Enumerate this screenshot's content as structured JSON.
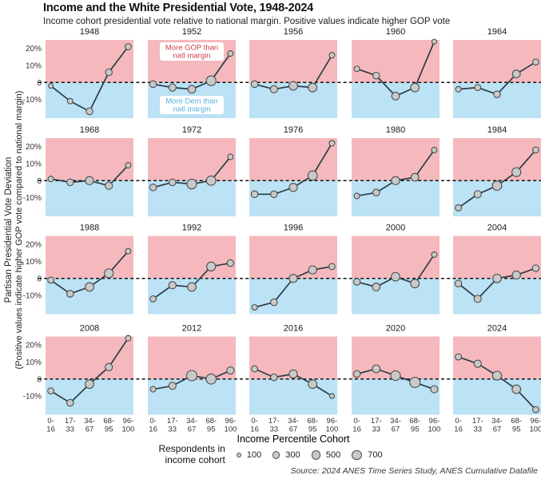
{
  "header": {
    "title": "Income and the White Presidential Vote, 1948-2024",
    "subtitle": "Income cohort presidential vote relative to national margin. Positive values indicate higher GOP vote"
  },
  "y_axis": {
    "label_line1": "Partisan Presidential Vote Deviation",
    "label_line2": "(Positive values indicate higher GOP vote compared to national margin)",
    "tick_labels": [
      "20%",
      "10%",
      "0",
      "-10%"
    ],
    "tick_values": [
      20,
      10,
      0,
      -10
    ]
  },
  "x_axis": {
    "title": "Income Percentile Cohort",
    "tick_lines": [
      [
        "0-",
        "16"
      ],
      [
        "17-",
        "33"
      ],
      [
        "34-",
        "67"
      ],
      [
        "68-",
        "95"
      ],
      [
        "96-",
        "100"
      ]
    ]
  },
  "legend": {
    "label_line1": "Respondents in",
    "label_line2": "income cohort",
    "sizes": [
      100,
      300,
      500,
      700
    ]
  },
  "source": "Source: 2024 ANES Time Series Study, ANES Cumulative Datafile",
  "annotations": [
    {
      "panel": "1952",
      "position": "top",
      "lines": [
        "More GOP than",
        "natl margin"
      ],
      "color": "#cf3d47"
    },
    {
      "panel": "1952",
      "position": "bottom",
      "lines": [
        "More Dem than",
        "natl margin"
      ],
      "color": "#55afe0"
    }
  ],
  "colors": {
    "gop_bg": "#f5b9bd",
    "dem_bg": "#bbe2f5",
    "line": "#2d3c46",
    "point_fill": "#c9c9c9",
    "point_stroke": "#4d4d4d",
    "zero_line": "#111111"
  },
  "chart_data": {
    "type": "line",
    "layout": "small-multiples 4 rows x 5 cols",
    "x_categories": [
      "0-16",
      "17-33",
      "34-67",
      "68-95",
      "96-100"
    ],
    "xlabel": "Income Percentile Cohort",
    "ylabel": "Partisan Presidential Vote Deviation (positive = higher GOP vote vs national margin)",
    "ylim": [
      -21,
      25
    ],
    "yticks": [
      20,
      10,
      0,
      -10
    ],
    "grid": false,
    "point_size_encoding": "respondents in income cohort",
    "panels": [
      {
        "year": "1948",
        "values": [
          -2,
          -11,
          -17,
          6,
          21
        ],
        "respondents": [
          100,
          150,
          250,
          250,
          200
        ]
      },
      {
        "year": "1952",
        "values": [
          -1,
          -3,
          -4,
          1,
          17
        ],
        "respondents": [
          250,
          300,
          350,
          600,
          150
        ]
      },
      {
        "year": "1956",
        "values": [
          -1,
          -4,
          -2,
          -3,
          16
        ],
        "respondents": [
          250,
          300,
          450,
          450,
          150
        ]
      },
      {
        "year": "1960",
        "values": [
          8,
          4,
          -8,
          -3,
          24
        ],
        "respondents": [
          150,
          250,
          350,
          450,
          100
        ]
      },
      {
        "year": "1964",
        "values": [
          -4,
          -3,
          -7,
          5,
          12
        ],
        "respondents": [
          150,
          200,
          250,
          350,
          200
        ]
      },
      {
        "year": "1968",
        "values": [
          1,
          -1,
          0,
          -3,
          9
        ],
        "respondents": [
          150,
          250,
          400,
          300,
          150
        ]
      },
      {
        "year": "1972",
        "values": [
          -4,
          -1,
          -2,
          0,
          14
        ],
        "respondents": [
          250,
          250,
          600,
          550,
          150
        ]
      },
      {
        "year": "1976",
        "values": [
          -8,
          -8,
          -4,
          3,
          22
        ],
        "respondents": [
          250,
          250,
          400,
          550,
          150
        ]
      },
      {
        "year": "1980",
        "values": [
          -9,
          -7,
          0,
          2,
          18
        ],
        "respondents": [
          150,
          250,
          400,
          350,
          150
        ]
      },
      {
        "year": "1984",
        "values": [
          -16,
          -8,
          -3,
          5,
          18
        ],
        "respondents": [
          200,
          300,
          550,
          500,
          200
        ]
      },
      {
        "year": "1988",
        "values": [
          -1,
          -9,
          -5,
          3,
          16
        ],
        "respondents": [
          200,
          250,
          450,
          500,
          150
        ]
      },
      {
        "year": "1992",
        "values": [
          -12,
          -4,
          -5,
          7,
          9
        ],
        "respondents": [
          200,
          300,
          450,
          500,
          250
        ]
      },
      {
        "year": "1996",
        "values": [
          -17,
          -14,
          0,
          5,
          7
        ],
        "respondents": [
          150,
          250,
          400,
          400,
          200
        ]
      },
      {
        "year": "2000",
        "values": [
          -2,
          -5,
          1,
          -3,
          14
        ],
        "respondents": [
          250,
          350,
          450,
          450,
          150
        ]
      },
      {
        "year": "2004",
        "values": [
          -3,
          -12,
          0,
          2,
          6
        ],
        "respondents": [
          250,
          300,
          450,
          400,
          250
        ]
      },
      {
        "year": "2008",
        "values": [
          -7,
          -14,
          -3,
          7,
          24
        ],
        "respondents": [
          200,
          250,
          450,
          300,
          150
        ]
      },
      {
        "year": "2012",
        "values": [
          -6,
          -4,
          2,
          0,
          5
        ],
        "respondents": [
          150,
          300,
          700,
          650,
          300
        ]
      },
      {
        "year": "2016",
        "values": [
          6,
          1,
          3,
          -3,
          -10
        ],
        "respondents": [
          200,
          250,
          400,
          450,
          100
        ]
      },
      {
        "year": "2020",
        "values": [
          3,
          6,
          2,
          -2,
          -6
        ],
        "respondents": [
          250,
          350,
          600,
          700,
          300
        ]
      },
      {
        "year": "2024",
        "values": [
          13,
          9,
          2,
          -6,
          -18
        ],
        "respondents": [
          200,
          300,
          500,
          450,
          200
        ]
      }
    ]
  }
}
